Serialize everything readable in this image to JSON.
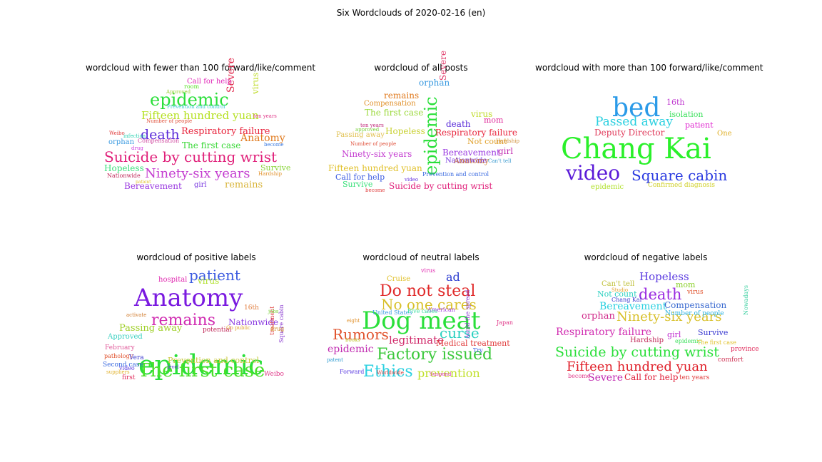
{
  "title": "Six Wordclouds of 2020-02-16 (en)",
  "panels": [
    {
      "title": "wordcloud with fewer than 100 forward/like/comment",
      "words": [
        {
          "text": "Suicide by cutting wrist",
          "color": "#e0207a"
        },
        {
          "text": "Ninety-six years",
          "color": "#c43cd0"
        },
        {
          "text": "epidemic",
          "color": "#2adf3a"
        },
        {
          "text": "Fifteen hundred yuan",
          "color": "#b4e01e"
        },
        {
          "text": "death",
          "color": "#5a2ad8"
        },
        {
          "text": "Respiratory failure",
          "color": "#e8243c"
        },
        {
          "text": "Anatomy",
          "color": "#e07a1e"
        },
        {
          "text": "Severe",
          "color": "#e0264a"
        },
        {
          "text": "The first case",
          "color": "#3ad838"
        },
        {
          "text": "Bereavement",
          "color": "#9a3ae0"
        },
        {
          "text": "remains",
          "color": "#d8b43a"
        },
        {
          "text": "Hopeless",
          "color": "#3ae07a"
        },
        {
          "text": "virus",
          "color": "#c0dc2e"
        },
        {
          "text": "Call for help",
          "color": "#e02ab8"
        },
        {
          "text": "Survive",
          "color": "#8ad43a"
        },
        {
          "text": "orphan",
          "color": "#3a9ae0"
        },
        {
          "text": "girl",
          "color": "#7a3ae0"
        },
        {
          "text": "Nationwide",
          "color": "#c02a5a"
        },
        {
          "text": "Hardship",
          "color": "#e0902a"
        },
        {
          "text": "ten years",
          "color": "#e03a8a"
        },
        {
          "text": "Compensation",
          "color": "#d04aa0"
        },
        {
          "text": "Prevention and control",
          "color": "#3acad0"
        },
        {
          "text": "room",
          "color": "#5ae02a"
        },
        {
          "text": "Approved",
          "color": "#9ad03a"
        },
        {
          "text": "Number of people",
          "color": "#e0503a"
        },
        {
          "text": "Weibo",
          "color": "#e03a3a"
        },
        {
          "text": "become",
          "color": "#3a7ae0"
        },
        {
          "text": "infection",
          "color": "#2ad0b0"
        },
        {
          "text": "drug",
          "color": "#d03ae0"
        },
        {
          "text": "patient",
          "color": "#e0c02a"
        }
      ]
    },
    {
      "title": "wordcloud of all posts",
      "words": [
        {
          "text": "epidemic",
          "color": "#2adf3a"
        },
        {
          "text": "Suicide by cutting wrist",
          "color": "#e0207a"
        },
        {
          "text": "Fifteen hundred yuan",
          "color": "#e0c02a"
        },
        {
          "text": "Ninety-six years",
          "color": "#c43cd0"
        },
        {
          "text": "Respiratory failure",
          "color": "#e8243c"
        },
        {
          "text": "Bereavement",
          "color": "#9a3ae0"
        },
        {
          "text": "Hopeless",
          "color": "#c8d030"
        },
        {
          "text": "The first case",
          "color": "#9ad83a"
        },
        {
          "text": "Severe",
          "color": "#e03a6a"
        },
        {
          "text": "remains",
          "color": "#e07a1e"
        },
        {
          "text": "Compensation",
          "color": "#e0902a"
        },
        {
          "text": "death",
          "color": "#5a2ad8"
        },
        {
          "text": "Anatomy",
          "color": "#d07a2a"
        },
        {
          "text": "Call for help",
          "color": "#3a5ae0"
        },
        {
          "text": "Nationwide",
          "color": "#7a3ae0"
        },
        {
          "text": "virus",
          "color": "#c0dc2e"
        },
        {
          "text": "orphan",
          "color": "#3a9ae0"
        },
        {
          "text": "mom",
          "color": "#e02a9a"
        },
        {
          "text": "girl",
          "color": "#c02ab0"
        },
        {
          "text": "Not count",
          "color": "#e0a02a"
        },
        {
          "text": "Survive",
          "color": "#3ae07a"
        },
        {
          "text": "Passing away",
          "color": "#e0c050"
        },
        {
          "text": "Prevention and control",
          "color": "#3a6ae0"
        },
        {
          "text": "Can't tell",
          "color": "#3a9ad0"
        },
        {
          "text": "Hardship",
          "color": "#d0903a"
        },
        {
          "text": "become",
          "color": "#e03a3a"
        },
        {
          "text": "video",
          "color": "#6a3ae0"
        },
        {
          "text": "ten years",
          "color": "#c02a7a"
        },
        {
          "text": "approved",
          "color": "#7ad03a"
        },
        {
          "text": "Number of people",
          "color": "#e0503a"
        }
      ]
    },
    {
      "title": "wordcloud with more than 100 forward/like/comment",
      "words": [
        {
          "text": "Chang Kai",
          "color": "#2af02a"
        },
        {
          "text": "bed",
          "color": "#2a9ae8"
        },
        {
          "text": "video",
          "color": "#5a1ad8"
        },
        {
          "text": "Square cabin",
          "color": "#2a3ae0"
        },
        {
          "text": "Passed away",
          "color": "#2ad0e0"
        },
        {
          "text": "Deputy Director",
          "color": "#e03a5a"
        },
        {
          "text": "16th",
          "color": "#c03ad0"
        },
        {
          "text": "isolation",
          "color": "#3ae05a"
        },
        {
          "text": "patient",
          "color": "#e02ad0"
        },
        {
          "text": "One",
          "color": "#e0b02a"
        },
        {
          "text": "epidemic",
          "color": "#b0e02a"
        },
        {
          "text": "Confirmed diagnosis",
          "color": "#d0d02a"
        }
      ]
    },
    {
      "title": "wordcloud of positive labels",
      "words": [
        {
          "text": "epidemic",
          "color": "#2adf3a"
        },
        {
          "text": "Anatomy",
          "color": "#7a1ae0"
        },
        {
          "text": "The first case",
          "color": "#4ae02a"
        },
        {
          "text": "remains",
          "color": "#d02ab0"
        },
        {
          "text": "patient",
          "color": "#3a5ae0"
        },
        {
          "text": "Passing away",
          "color": "#a0d02a"
        },
        {
          "text": "Nationwide",
          "color": "#8a3ae0"
        },
        {
          "text": "Prevention and control",
          "color": "#c8c83a"
        },
        {
          "text": "virus",
          "color": "#b0e02a"
        },
        {
          "text": "potential",
          "color": "#c02a5a"
        },
        {
          "text": "hospital",
          "color": "#e02ab0"
        },
        {
          "text": "Approved",
          "color": "#3ad0c0"
        },
        {
          "text": "February",
          "color": "#e05a9a"
        },
        {
          "text": "Square cabin",
          "color": "#8a3ad0"
        },
        {
          "text": "treatment",
          "color": "#e03a3a"
        },
        {
          "text": "drug",
          "color": "#d0902a"
        },
        {
          "text": "video",
          "color": "#5a3ae0"
        },
        {
          "text": "Weibo",
          "color": "#e03a8a"
        },
        {
          "text": "16th",
          "color": "#e07a3a"
        },
        {
          "text": "pathology",
          "color": "#e0502a"
        },
        {
          "text": "Second case",
          "color": "#3a6ae0"
        },
        {
          "text": "Vera",
          "color": "#3a3ad0"
        },
        {
          "text": "first",
          "color": "#e02a5a"
        },
        {
          "text": "Go public",
          "color": "#e0a02a"
        },
        {
          "text": "level",
          "color": "#5a3ad0"
        },
        {
          "text": "jobs",
          "color": "#7ad03a"
        },
        {
          "text": "suppliers",
          "color": "#e0b02a"
        },
        {
          "text": "activate",
          "color": "#d07a2a"
        }
      ]
    },
    {
      "title": "wordcloud of neutral labels",
      "words": [
        {
          "text": "Dog meat",
          "color": "#2adf3a"
        },
        {
          "text": "Do not steal",
          "color": "#e02a2a"
        },
        {
          "text": "No one cares",
          "color": "#d8c02a"
        },
        {
          "text": "Factory issued",
          "color": "#3ac83a"
        },
        {
          "text": "Ethics",
          "color": "#2ad0e0"
        },
        {
          "text": "Rumors",
          "color": "#e0502a"
        },
        {
          "text": "curse",
          "color": "#2ad0c0"
        },
        {
          "text": "prevention",
          "color": "#c0e02a"
        },
        {
          "text": "legitimate",
          "color": "#d02a6a"
        },
        {
          "text": "epidemic",
          "color": "#c02ab0"
        },
        {
          "text": "Medical treatment",
          "color": "#e03a3a"
        },
        {
          "text": "ad",
          "color": "#2a3ad0"
        },
        {
          "text": "Cruise",
          "color": "#e0c02a"
        },
        {
          "text": "United States",
          "color": "#3a9ae0"
        },
        {
          "text": "American",
          "color": "#a03ae0"
        },
        {
          "text": "Forward",
          "color": "#5a3ae0"
        },
        {
          "text": "virus",
          "color": "#e02ab0"
        },
        {
          "text": "Five cases",
          "color": "#3ae0a0"
        },
        {
          "text": "Japan",
          "color": "#e03a8a"
        },
        {
          "text": "Try",
          "color": "#3a5ae0"
        },
        {
          "text": "eight",
          "color": "#e0902a"
        },
        {
          "text": "Worldwide",
          "color": "#d03a3a"
        },
        {
          "text": "books",
          "color": "#c0c02a"
        },
        {
          "text": "Avoid the spread",
          "color": "#8a3ad0"
        },
        {
          "text": "patent",
          "color": "#2a9ad0"
        },
        {
          "text": "Suspend",
          "color": "#e03ac0"
        }
      ]
    },
    {
      "title": "wordcloud of negative labels",
      "words": [
        {
          "text": "Suicide by cutting wrist",
          "color": "#2adf3a"
        },
        {
          "text": "Fifteen hundred yuan",
          "color": "#e0202a"
        },
        {
          "text": "Ninety-six years",
          "color": "#d8c02a"
        },
        {
          "text": "Respiratory failure",
          "color": "#d02ab0"
        },
        {
          "text": "death",
          "color": "#9a2ae0"
        },
        {
          "text": "Bereavement",
          "color": "#2ad0e0"
        },
        {
          "text": "Hopeless",
          "color": "#5a3ae0"
        },
        {
          "text": "Compensation",
          "color": "#3a6ad0"
        },
        {
          "text": "Severe",
          "color": "#c02ab0"
        },
        {
          "text": "Call for help",
          "color": "#e0203a"
        },
        {
          "text": "orphan",
          "color": "#d02a8a"
        },
        {
          "text": "Survive",
          "color": "#3a3ad0"
        },
        {
          "text": "mom",
          "color": "#8ad02a"
        },
        {
          "text": "girl",
          "color": "#c02ad0"
        },
        {
          "text": "Not count",
          "color": "#2ad0c0"
        },
        {
          "text": "Can't tell",
          "color": "#c0c03a"
        },
        {
          "text": "epidemic",
          "color": "#3ae05a"
        },
        {
          "text": "Hardship",
          "color": "#c02a5a"
        },
        {
          "text": "Number of people",
          "color": "#2ab0e0"
        },
        {
          "text": "virus",
          "color": "#e0502a"
        },
        {
          "text": "Chang Kai",
          "color": "#3a3ad0"
        },
        {
          "text": "ten years",
          "color": "#e03a3a"
        },
        {
          "text": "The first case",
          "color": "#e0c02a"
        },
        {
          "text": "become",
          "color": "#e03a8a"
        },
        {
          "text": "comfort",
          "color": "#d03a5a"
        },
        {
          "text": "province",
          "color": "#e02a5a"
        },
        {
          "text": "Nowadays",
          "color": "#3ad0a0"
        },
        {
          "text": "Studio",
          "color": "#e0a02a"
        }
      ]
    }
  ]
}
